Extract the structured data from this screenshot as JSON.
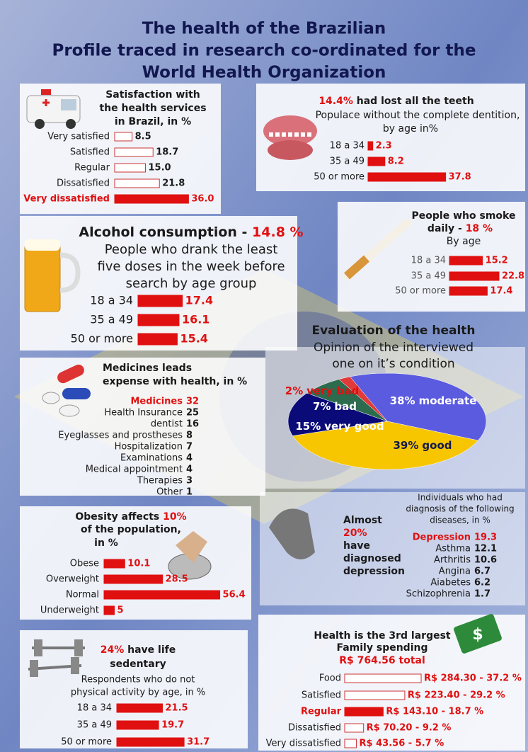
{
  "title": [
    "The health of the Brazilian",
    "Profile traced in research co-ordinated for the",
    "World Health Organization"
  ],
  "satisfaction": {
    "title": [
      "Satisfaction with",
      "the health services",
      "in Brazil, in %"
    ],
    "categories": [
      "Very satisfied",
      "Satisfied",
      "Regular",
      "Dissatisfied",
      "Very dissatisfied"
    ],
    "values": [
      8.5,
      18.7,
      15.0,
      21.8,
      36.0
    ],
    "value_labels": [
      "8.5",
      "18.7",
      "15.0",
      "21.8",
      "36.0"
    ]
  },
  "teeth": {
    "highlight": "14.4%",
    "title": " had lost all the teeth",
    "subtitle": [
      "Populace without the complete dentition,",
      "by age in%"
    ],
    "categories": [
      "18 a 34",
      "35 a 49",
      "50 or more"
    ],
    "values": [
      2.3,
      8.2,
      37.8
    ]
  },
  "alcohol": {
    "title": "Alcohol consumption - ",
    "highlight": "14.8 %",
    "subtitle": [
      "People who drank the least",
      "five doses in the week before",
      "search by age group"
    ],
    "categories": [
      "18 a 34",
      "35 a 49",
      "50 or more"
    ],
    "values": [
      17.4,
      16.1,
      15.4
    ]
  },
  "smoke": {
    "title": [
      "People who smoke",
      "daily - "
    ],
    "highlight": "18 %",
    "subtitle": "By age",
    "categories": [
      "18 a 34",
      "35 a 49",
      "50 or more"
    ],
    "values": [
      15.2,
      22.8,
      17.4
    ]
  },
  "evaluation": {
    "title": "Evaluation of the health",
    "subtitle": [
      "Opinion of the interviewed",
      "one on it’s condition"
    ],
    "labels": [
      "moderate",
      "good",
      "very good",
      "bad",
      "very bad"
    ],
    "values": [
      38,
      39,
      15,
      7,
      2
    ],
    "value_labels": [
      "38%",
      "39%",
      "15%",
      "7%",
      "2%"
    ],
    "colors": [
      "#5b5be0",
      "#f7c600",
      "#0a0a78",
      "#2c6b4e",
      "#e03a3a"
    ]
  },
  "medicines": {
    "title": [
      "Medicines leads",
      "expense with health, in %"
    ],
    "categories": [
      "Medicines",
      "Health Insurance",
      "dentist",
      "Eyeglasses and prostheses",
      "Hospitalization",
      "Examinations",
      "Medical appointment",
      "Therapies",
      "Other"
    ],
    "values": [
      32,
      25,
      16,
      8,
      7,
      4,
      4,
      3,
      1
    ]
  },
  "obesity": {
    "title": [
      "Obesity affects ",
      "of the population,",
      "in %"
    ],
    "highlight": "10%",
    "categories": [
      "Obese",
      "Overweight",
      "Normal",
      "Underweight"
    ],
    "values": [
      10.1,
      28.5,
      56.4,
      5
    ]
  },
  "depression": {
    "lead": [
      "Almost",
      "20%",
      "have",
      "diagnosed",
      "depression"
    ],
    "subtitle": [
      "Individuals who had",
      "diagnosis of the following",
      "diseases, in %"
    ],
    "categories": [
      "Depression",
      "Asthma",
      "Arthritis",
      "Angina",
      "Aiabetes",
      "Schizophrenia"
    ],
    "values": [
      19.3,
      12.1,
      10.6,
      6.7,
      6.2,
      1.7
    ]
  },
  "sedentary": {
    "highlight": "24%",
    "title": [
      " have life",
      "sedentary"
    ],
    "subtitle": [
      "Respondents who do not",
      "physical activity by age, in %"
    ],
    "categories": [
      "18 a 34",
      "35 a 49",
      "50 or more"
    ],
    "values": [
      21.5,
      19.7,
      31.7
    ]
  },
  "spending": {
    "title": [
      "Health is the 3rd largest",
      "Family spending"
    ],
    "total": "R$ 764.56 total",
    "categories": [
      "Food",
      "Satisfied",
      "Regular",
      "Dissatisfied",
      "Very dissatisfied"
    ],
    "values": [
      284.3,
      223.4,
      143.1,
      70.2,
      43.56
    ],
    "value_labels": [
      "R$ 284.30 - 37.2 %",
      "R$ 223.40 - 29.2 %",
      "R$ 143.10 - 18.7 %",
      "R$ 70.20 - 9.2 %",
      "R$ 43.56 - 5.7 %"
    ]
  }
}
